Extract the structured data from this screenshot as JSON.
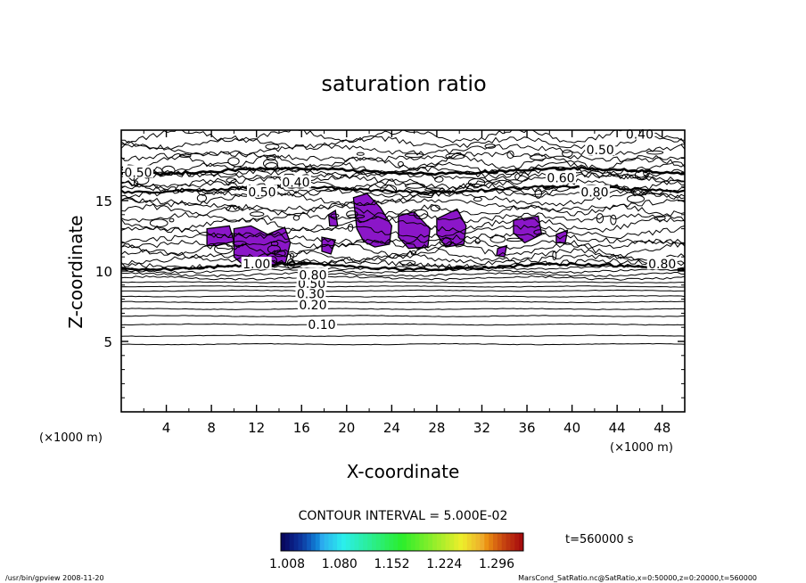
{
  "chart_data": {
    "type": "contour",
    "title": "saturation ratio",
    "xlabel": "X-coordinate",
    "ylabel": "Z-coordinate",
    "x_unit": "(×1000 m)",
    "y_unit": "(×1000 m)",
    "xlim": [
      0,
      50
    ],
    "ylim": [
      0,
      20
    ],
    "x_ticks": [
      4,
      8,
      12,
      16,
      20,
      24,
      28,
      32,
      36,
      40,
      44,
      48
    ],
    "y_ticks": [
      5,
      10,
      15
    ],
    "contour_interval_text": "CONTOUR INTERVAL = 5.000E-02",
    "contour_labels": [
      {
        "text": "0.10",
        "x": 17.8,
        "z": 6.2
      },
      {
        "text": "0.20",
        "x": 17.0,
        "z": 7.6
      },
      {
        "text": "0.30",
        "x": 16.8,
        "z": 8.4
      },
      {
        "text": "0.50",
        "x": 16.9,
        "z": 9.1
      },
      {
        "text": "0.80",
        "x": 17.0,
        "z": 9.7
      },
      {
        "text": "1.00",
        "x": 12.0,
        "z": 10.5
      },
      {
        "text": "0.40",
        "x": 46.0,
        "z": 19.7
      },
      {
        "text": "0.50",
        "x": 42.5,
        "z": 18.6
      },
      {
        "text": "0.60",
        "x": 39.0,
        "z": 16.6
      },
      {
        "text": "0.80",
        "x": 42.0,
        "z": 15.6
      },
      {
        "text": "0.40",
        "x": 15.5,
        "z": 16.3
      },
      {
        "text": "0.50",
        "x": 12.5,
        "z": 15.6
      },
      {
        "text": "0.50",
        "x": 1.5,
        "z": 17.0
      },
      {
        "text": "0.80",
        "x": 48.0,
        "z": 10.5
      }
    ],
    "isolines_z": [
      4.8,
      5.4,
      6.2,
      6.8,
      7.3,
      7.8,
      8.2,
      8.6,
      8.9,
      9.2,
      9.5,
      9.75,
      10.0,
      10.25
    ],
    "supersaturated_regions": [
      [
        [
          7.6,
          13.0
        ],
        [
          9.6,
          13.2
        ],
        [
          10.0,
          12.1
        ],
        [
          8.5,
          11.8
        ],
        [
          7.6,
          11.8
        ]
      ],
      [
        [
          10.0,
          13.0
        ],
        [
          11.5,
          13.2
        ],
        [
          13.0,
          12.6
        ],
        [
          14.5,
          13.1
        ],
        [
          15.0,
          12.0
        ],
        [
          14.6,
          10.6
        ],
        [
          13.0,
          10.2
        ],
        [
          11.0,
          10.3
        ],
        [
          10.0,
          11.0
        ]
      ],
      [
        [
          17.8,
          12.4
        ],
        [
          19.0,
          12.2
        ],
        [
          18.6,
          11.2
        ],
        [
          17.8,
          11.4
        ]
      ],
      [
        [
          18.4,
          14.0
        ],
        [
          19.0,
          14.3
        ],
        [
          19.2,
          13.2
        ],
        [
          18.5,
          13.2
        ]
      ],
      [
        [
          20.6,
          15.2
        ],
        [
          21.8,
          15.5
        ],
        [
          23.0,
          14.5
        ],
        [
          24.0,
          13.2
        ],
        [
          23.8,
          11.9
        ],
        [
          22.5,
          11.7
        ],
        [
          21.5,
          12.1
        ],
        [
          20.9,
          13.0
        ]
      ],
      [
        [
          24.6,
          13.9
        ],
        [
          26.0,
          14.2
        ],
        [
          27.4,
          13.0
        ],
        [
          27.2,
          11.7
        ],
        [
          25.5,
          11.6
        ],
        [
          24.6,
          12.4
        ]
      ],
      [
        [
          28.0,
          13.7
        ],
        [
          29.8,
          14.4
        ],
        [
          30.6,
          13.2
        ],
        [
          30.4,
          11.9
        ],
        [
          28.8,
          11.7
        ],
        [
          28.0,
          12.6
        ]
      ],
      [
        [
          34.8,
          13.6
        ],
        [
          37.0,
          13.9
        ],
        [
          37.3,
          12.6
        ],
        [
          35.8,
          12.0
        ],
        [
          34.8,
          12.7
        ]
      ],
      [
        [
          33.4,
          11.6
        ],
        [
          34.2,
          11.8
        ],
        [
          34.0,
          11.0
        ],
        [
          33.3,
          11.1
        ]
      ],
      [
        [
          38.6,
          12.6
        ],
        [
          39.6,
          12.9
        ],
        [
          39.4,
          12.0
        ],
        [
          38.6,
          12.0
        ]
      ]
    ],
    "colorbar": {
      "min": 1.008,
      "max": 1.296,
      "ticks": [
        "1.008",
        "1.080",
        "1.152",
        "1.224",
        "1.296"
      ]
    },
    "time_label": "t=560000 s"
  },
  "footer": {
    "left": "/usr/bin/gpview  2008-11-20",
    "right": "MarsCond_SatRatio.nc@SatRatio,x=0:50000,z=0:20000,t=560000"
  }
}
